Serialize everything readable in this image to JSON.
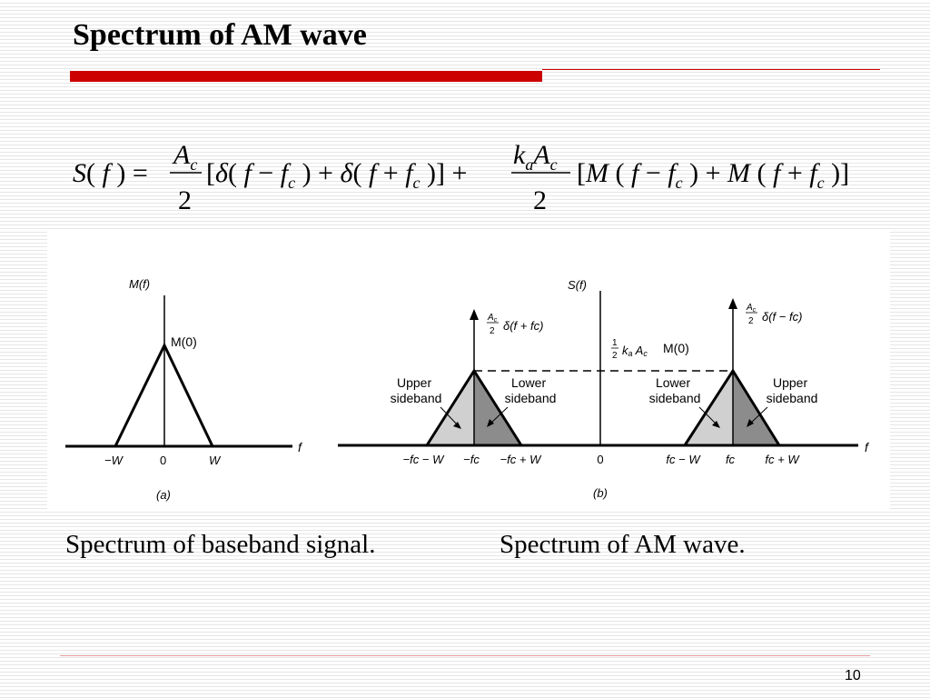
{
  "slide": {
    "title": "Spectrum of AM wave",
    "page_number": "10",
    "colors": {
      "accent": "#cc0000",
      "footer_line": "#e79b9b"
    }
  },
  "equation": {
    "lhs": "S(f) =",
    "term1_num": "Ac",
    "term1_den": "2",
    "term1_body": "[δ(f − fc) + δ(f + fc)] +",
    "term2_num": "kaAc",
    "term2_den": "2",
    "term2_body": "[M(f − fc) + M(f + fc)]"
  },
  "figure_a": {
    "ylabel": "M(f)",
    "peak_label": "M(0)",
    "axis_label": "f",
    "ticks": [
      "−W",
      "0",
      "W"
    ],
    "caption": "(a)"
  },
  "figure_b": {
    "ylabel": "S(f)",
    "impulse_left": "δ(f + fc)",
    "impulse_right": "δ(f − fc)",
    "level_label": "M(0)",
    "left_upper": [
      "Upper",
      "sideband"
    ],
    "left_lower": [
      "Lower",
      "sideband"
    ],
    "right_lower": [
      "Lower",
      "sideband"
    ],
    "right_upper": [
      "Upper",
      "sideband"
    ],
    "axis_label": "f",
    "ticks": [
      "−fc − W",
      "−fc",
      "−fc + W",
      "0",
      "fc − W",
      "fc",
      "fc + W"
    ],
    "caption": "(b)"
  },
  "captions": {
    "left": "Spectrum of baseband signal.",
    "right": "Spectrum of AM wave."
  }
}
